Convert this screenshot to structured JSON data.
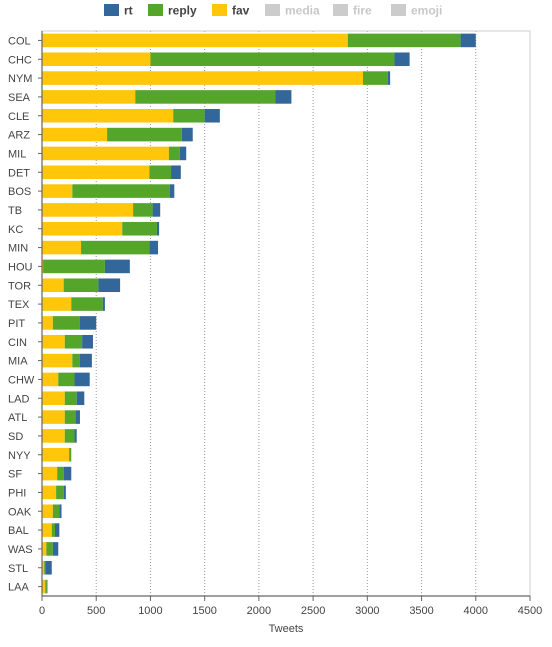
{
  "chart_data": {
    "type": "bar",
    "orientation": "horizontal",
    "stacked": true,
    "xlabel": "Tweets",
    "xlim": [
      0,
      4500
    ],
    "xticks": [
      0,
      500,
      1000,
      1500,
      2000,
      2500,
      3000,
      3500,
      4000,
      4500
    ],
    "grid": "vertical dotted",
    "legend_position": "top",
    "categories": [
      "COL",
      "CHC",
      "NYM",
      "SEA",
      "CLE",
      "ARZ",
      "MIL",
      "DET",
      "BOS",
      "TB",
      "KC",
      "MIN",
      "HOU",
      "TOR",
      "TEX",
      "PIT",
      "CIN",
      "MIA",
      "CHW",
      "LAD",
      "ATL",
      "SD",
      "NYY",
      "SF",
      "PHI",
      "OAK",
      "BAL",
      "WAS",
      "STL",
      "LAA"
    ],
    "series": [
      {
        "name": "fav",
        "color": "#ffc60a",
        "values": [
          2820,
          1000,
          2960,
          860,
          1210,
          600,
          1170,
          990,
          280,
          840,
          740,
          360,
          10,
          200,
          270,
          100,
          210,
          280,
          150,
          210,
          210,
          210,
          250,
          140,
          130,
          100,
          90,
          40,
          20,
          30
        ]
      },
      {
        "name": "reply",
        "color": "#56a52b",
        "values": [
          1040,
          2250,
          230,
          1290,
          290,
          690,
          100,
          200,
          900,
          180,
          320,
          630,
          570,
          320,
          290,
          250,
          160,
          70,
          150,
          110,
          100,
          90,
          20,
          60,
          70,
          60,
          30,
          60,
          10,
          15
        ]
      },
      {
        "name": "rt",
        "color": "#336699",
        "values": [
          140,
          140,
          20,
          150,
          140,
          100,
          60,
          90,
          40,
          70,
          20,
          80,
          230,
          200,
          20,
          150,
          100,
          110,
          140,
          70,
          40,
          20,
          0,
          70,
          20,
          20,
          40,
          50,
          60,
          5
        ]
      }
    ],
    "legend": [
      {
        "name": "rt",
        "color": "#336699",
        "enabled": true
      },
      {
        "name": "reply",
        "color": "#56a52b",
        "enabled": true
      },
      {
        "name": "fav",
        "color": "#ffc60a",
        "enabled": true
      },
      {
        "name": "media",
        "color": "#cccccc",
        "enabled": false
      },
      {
        "name": "fire",
        "color": "#cccccc",
        "enabled": false
      },
      {
        "name": "emoji",
        "color": "#cccccc",
        "enabled": false
      }
    ]
  }
}
